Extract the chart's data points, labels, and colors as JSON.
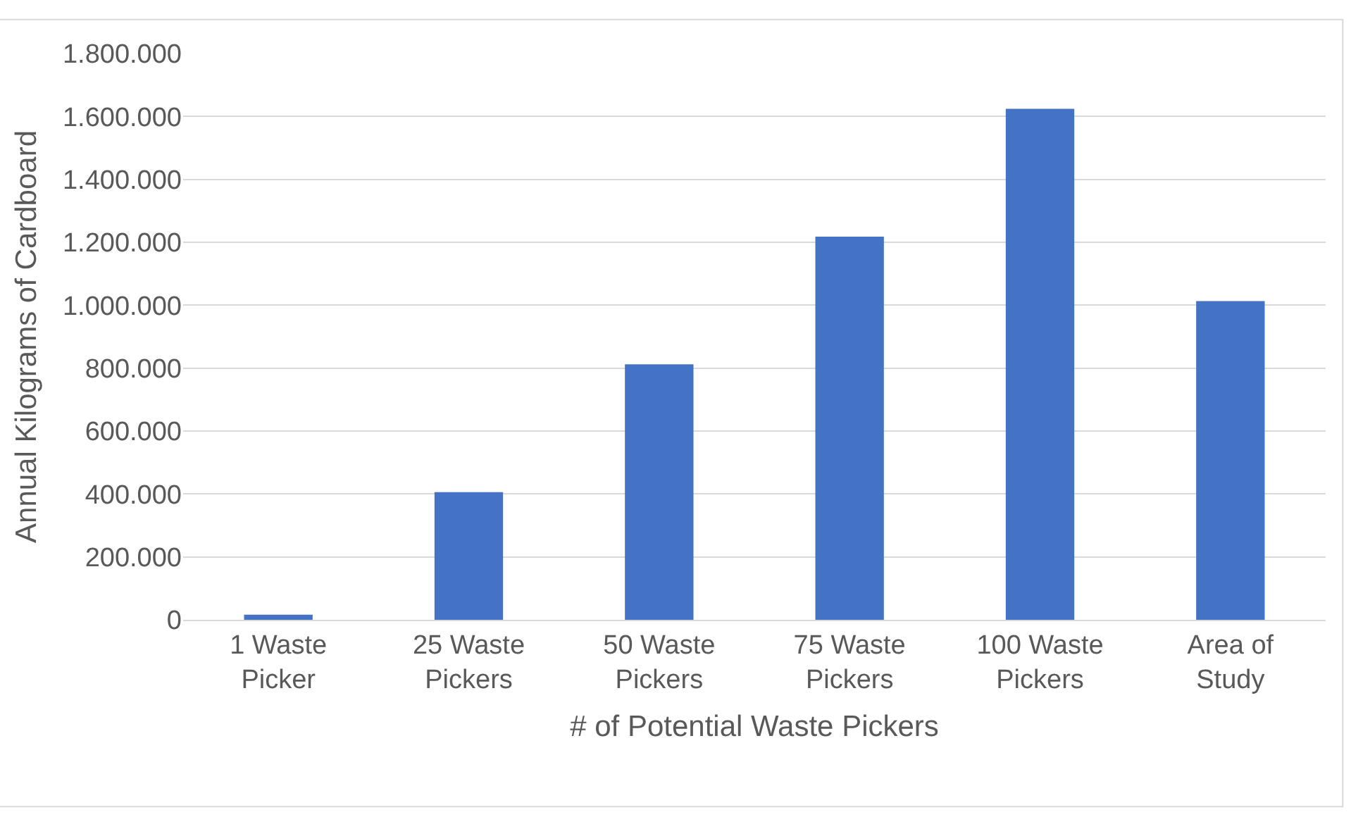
{
  "chart_data": {
    "type": "bar",
    "xlabel": "# of Potential Waste Pickers",
    "ylabel": "Annual Kilograms of Cardboard",
    "categories": [
      "1 Waste Picker",
      "25 Waste Pickers",
      "50 Waste Pickers",
      "75 Waste Pickers",
      "100 Waste Pickers",
      "Area of Study"
    ],
    "values": [
      16000,
      406000,
      812000,
      1218000,
      1624000,
      1013000
    ],
    "color": "#4472c4",
    "ylim": [
      0,
      1800000
    ],
    "yticks": [
      0,
      {
        "value": 200000,
        "label": "200.000"
      },
      {
        "value": 400000,
        "label": "400.000"
      },
      {
        "value": 600000,
        "label": "600.000"
      },
      {
        "value": 800000,
        "label": "800.000"
      },
      {
        "value": 1000000,
        "label": "1.000.000"
      },
      {
        "value": 1200000,
        "label": "1.200.000"
      },
      {
        "value": 1400000,
        "label": "1.400.000"
      },
      {
        "value": 1600000,
        "label": "1.600.000"
      },
      {
        "value": 1800000,
        "label": "1.800.000"
      }
    ],
    "grid": "y",
    "legend": false
  }
}
